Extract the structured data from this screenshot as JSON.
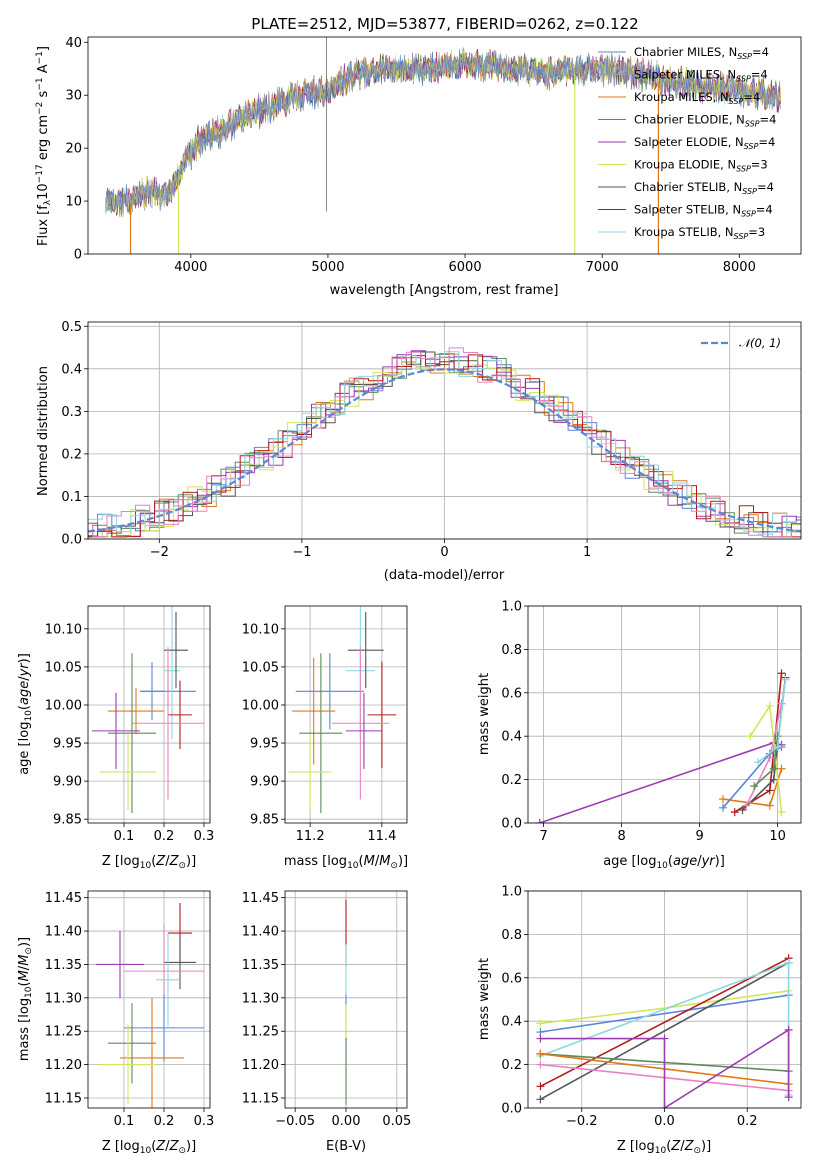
{
  "colors": {
    "chabrier_miles": "#5b86d6",
    "salpeter_miles": "#9aa0a6",
    "kroupa_miles": "#e07a17",
    "chabrier_elodie": "#5f8a5f",
    "salpeter_elodie": "#9b3bb2",
    "kroupa_elodie": "#cfe85a",
    "chabrier_stelib": "#555555",
    "salpeter_stelib": "#b31b1b",
    "kroupa_stelib": "#8ad8e0",
    "pink": "#e882c0",
    "normal_curve": "#5b86d6"
  },
  "chart_data": [
    {
      "id": "spectrum",
      "type": "line",
      "title": "PLATE=2512, MJD=53877, FIBERID=0262, z=0.122",
      "xlabel": "wavelength [Angstrom, rest frame]",
      "ylabel": "Flux [f_λ 10^-17 erg cm^-2 s^-1 A^-1]",
      "xlim": [
        3250,
        8450
      ],
      "ylim": [
        0,
        41
      ],
      "xticks": [
        "4000",
        "5000",
        "6000",
        "7000",
        "8000"
      ],
      "yticks": [
        "0",
        "10",
        "20",
        "30",
        "40"
      ],
      "legend_position": "upper-right",
      "legend": [
        {
          "label": "Chabrier MILES, N",
          "sub": "SSP",
          "rest": "=4",
          "color_key": "chabrier_miles"
        },
        {
          "label": "Salpeter MILES, N",
          "sub": "SSP",
          "rest": "=4",
          "color_key": "salpeter_miles"
        },
        {
          "label": "Kroupa MILES, N",
          "sub": "SSP",
          "rest": "=4",
          "color_key": "kroupa_miles"
        },
        {
          "label": "Chabrier ELODIE, N",
          "sub": "SSP",
          "rest": "=4",
          "color_key": "chabrier_elodie"
        },
        {
          "label": "Salpeter ELODIE, N",
          "sub": "SSP",
          "rest": "=4",
          "color_key": "salpeter_elodie"
        },
        {
          "label": "Kroupa ELODIE, N",
          "sub": "SSP",
          "rest": "=3",
          "color_key": "kroupa_elodie"
        },
        {
          "label": "Chabrier STELIB, N",
          "sub": "SSP",
          "rest": "=4",
          "color_key": "chabrier_stelib"
        },
        {
          "label": "Salpeter STELIB, N",
          "sub": "SSP",
          "rest": "=4",
          "color_key": "salpeter_stelib"
        },
        {
          "label": "Kroupa STELIB, N",
          "sub": "SSP",
          "rest": "=3",
          "color_key": "kroupa_stelib"
        }
      ],
      "continuum": [
        [
          3380,
          10
        ],
        [
          3500,
          9.5
        ],
        [
          3700,
          12
        ],
        [
          3850,
          11
        ],
        [
          3950,
          17
        ],
        [
          4050,
          21
        ],
        [
          4200,
          23
        ],
        [
          4400,
          26
        ],
        [
          4600,
          28
        ],
        [
          4800,
          30
        ],
        [
          5000,
          31
        ],
        [
          5200,
          34
        ],
        [
          5400,
          35
        ],
        [
          5700,
          35
        ],
        [
          6000,
          36
        ],
        [
          6300,
          35
        ],
        [
          6600,
          34
        ],
        [
          6900,
          35
        ],
        [
          7200,
          34.5
        ],
        [
          7500,
          32.5
        ],
        [
          7800,
          31.5
        ],
        [
          8100,
          30.5
        ],
        [
          8300,
          30
        ]
      ],
      "drops": [
        {
          "x": 3560,
          "from": 9,
          "color_key": "kroupa_miles"
        },
        {
          "x": 3910,
          "from": 13,
          "color_key": "kroupa_elodie"
        },
        {
          "x": 6800,
          "from": 34,
          "color_key": "kroupa_elodie"
        },
        {
          "x": 7410,
          "from": 32,
          "color_key": "kroupa_miles"
        }
      ],
      "spikes": [
        {
          "x": 4990,
          "from": 8,
          "to": 41
        }
      ]
    },
    {
      "id": "residuals",
      "type": "histogram",
      "xlabel": "(data-model)/error",
      "ylabel": "Normed distribution",
      "xlim": [
        -2.5,
        2.5
      ],
      "ylim": [
        0,
        0.51
      ],
      "xticks": [
        -2,
        -1,
        0,
        1,
        2
      ],
      "xtick_labels": [
        "−2",
        "−1",
        "0",
        "1",
        "2"
      ],
      "yticks": [
        0.0,
        0.1,
        0.2,
        0.3,
        0.4,
        0.5
      ],
      "ytick_labels": [
        "0.0",
        "0.1",
        "0.2",
        "0.3",
        "0.4",
        "0.5"
      ],
      "legend": [
        {
          "label": "𝒩(0, 1)",
          "color_key": "normal_curve"
        }
      ],
      "bin_width": 0.1
    },
    {
      "id": "age_vs_Z",
      "type": "scatter",
      "xlabel": "Z [log10(Z/Z⊙)]",
      "ylabel": "age  [log10(age/yr)]",
      "xlim": [
        0.01,
        0.315
      ],
      "ylim": [
        9.845,
        10.13
      ],
      "xticks": [
        0.1,
        0.2,
        0.3
      ],
      "xtick_labels": [
        "0.1",
        "0.2",
        "0.3"
      ],
      "yticks": [
        9.85,
        9.9,
        9.95,
        10.0,
        10.05,
        10.1
      ],
      "ytick_labels": [
        "9.85",
        "9.90",
        "9.95",
        "10.00",
        "10.05",
        "10.10"
      ],
      "points": [
        {
          "x": 0.17,
          "xerr": 0.03,
          "y": 10.018,
          "yerr": 0.038,
          "color_key": "chabrier_miles"
        },
        {
          "x": 0.21,
          "xerr": 0.07,
          "y": 10.018,
          "yerr": 0.018,
          "color_key": "chabrier_miles"
        },
        {
          "x": 0.22,
          "xerr": 0.02,
          "y": 10.045,
          "yerr": 0.09,
          "color_key": "kroupa_stelib"
        },
        {
          "x": 0.23,
          "xerr": 0.03,
          "y": 10.072,
          "yerr": 0.05,
          "color_key": "chabrier_stelib"
        },
        {
          "x": 0.24,
          "xerr": 0.03,
          "y": 9.987,
          "yerr": 0.045,
          "color_key": "salpeter_stelib"
        },
        {
          "x": 0.13,
          "xerr": 0.07,
          "y": 9.992,
          "yerr": 0.03,
          "color_key": "kroupa_miles"
        },
        {
          "x": 0.21,
          "xerr": 0.09,
          "y": 9.976,
          "yerr": 0.1,
          "color_key": "pink"
        },
        {
          "x": 0.08,
          "xerr": 0.06,
          "y": 9.966,
          "yerr": 0.05,
          "color_key": "salpeter_elodie"
        },
        {
          "x": 0.12,
          "xerr": 0.06,
          "y": 9.963,
          "yerr": 0.105,
          "color_key": "chabrier_elodie"
        },
        {
          "x": 0.11,
          "xerr": 0.07,
          "y": 9.912,
          "yerr": 0.05,
          "color_key": "kroupa_elodie"
        }
      ]
    },
    {
      "id": "age_vs_mass",
      "type": "scatter",
      "xlabel": "mass [log10(M/M⊙)]",
      "ylabel": "",
      "xlim": [
        11.13,
        11.47
      ],
      "ylim": [
        9.845,
        10.13
      ],
      "xticks": [
        11.2,
        11.4
      ],
      "xtick_labels": [
        "11.2",
        "11.4"
      ],
      "yticks": [
        9.85,
        9.9,
        9.95,
        10.0,
        10.05,
        10.1
      ],
      "ytick_labels": [
        "9.85",
        "9.90",
        "9.95",
        "10.00",
        "10.05",
        "10.10"
      ],
      "points": [
        {
          "x": 11.255,
          "xerr": 0.095,
          "y": 10.018,
          "yerr": 0.05,
          "color_key": "chabrier_miles"
        },
        {
          "x": 11.34,
          "xerr": 0.04,
          "y": 10.045,
          "yerr": 0.09,
          "color_key": "kroupa_stelib"
        },
        {
          "x": 11.355,
          "xerr": 0.05,
          "y": 10.072,
          "yerr": 0.05,
          "color_key": "chabrier_stelib"
        },
        {
          "x": 11.4,
          "xerr": 0.04,
          "y": 9.987,
          "yerr": 0.07,
          "color_key": "salpeter_stelib"
        },
        {
          "x": 11.21,
          "xerr": 0.06,
          "y": 9.992,
          "yerr": 0.07,
          "color_key": "kroupa_miles"
        },
        {
          "x": 11.34,
          "xerr": 0.08,
          "y": 9.976,
          "yerr": 0.1,
          "color_key": "pink"
        },
        {
          "x": 11.35,
          "xerr": 0.05,
          "y": 9.966,
          "yerr": 0.05,
          "color_key": "salpeter_elodie"
        },
        {
          "x": 11.23,
          "xerr": 0.06,
          "y": 9.963,
          "yerr": 0.105,
          "color_key": "chabrier_elodie"
        },
        {
          "x": 11.2,
          "xerr": 0.06,
          "y": 9.912,
          "yerr": 0.05,
          "color_key": "kroupa_elodie"
        }
      ]
    },
    {
      "id": "weight_vs_age",
      "type": "line",
      "xlabel": "age  [log10(age/yr)]",
      "ylabel": "mass weight",
      "xlim": [
        6.8,
        10.3
      ],
      "ylim": [
        0,
        1.0
      ],
      "xticks": [
        7,
        8,
        9,
        10
      ],
      "xtick_labels": [
        "7",
        "8",
        "9",
        "10"
      ],
      "yticks": [
        0,
        0.2,
        0.4,
        0.6,
        0.8,
        1.0
      ],
      "ytick_labels": [
        "0.0",
        "0.2",
        "0.4",
        "0.6",
        "0.8",
        "1.0"
      ],
      "series": [
        {
          "color_key": "salpeter_elodie",
          "x": [
            6.95,
            9.95,
            10.05
          ],
          "y": [
            0.0,
            0.37,
            0.36
          ]
        },
        {
          "color_key": "salpeter_stelib",
          "x": [
            9.45,
            9.9,
            10.05
          ],
          "y": [
            0.05,
            0.15,
            0.69
          ]
        },
        {
          "color_key": "chabrier_stelib",
          "x": [
            9.55,
            9.95,
            10.1
          ],
          "y": [
            0.06,
            0.2,
            0.67
          ]
        },
        {
          "color_key": "kroupa_miles",
          "x": [
            9.3,
            9.9,
            10.05
          ],
          "y": [
            0.11,
            0.08,
            0.25
          ]
        },
        {
          "color_key": "pink",
          "x": [
            9.6,
            9.9,
            10.05
          ],
          "y": [
            0.08,
            0.3,
            0.55
          ]
        },
        {
          "color_key": "kroupa_elodie",
          "x": [
            9.65,
            9.9,
            10.05
          ],
          "y": [
            0.4,
            0.54,
            0.05
          ]
        },
        {
          "color_key": "chabrier_miles",
          "x": [
            9.3,
            9.9,
            10.05
          ],
          "y": [
            0.07,
            0.32,
            0.35
          ]
        },
        {
          "color_key": "chabrier_elodie",
          "x": [
            9.7,
            9.95,
            10.0
          ],
          "y": [
            0.17,
            0.25,
            0.4
          ]
        },
        {
          "color_key": "kroupa_stelib",
          "x": [
            9.75,
            10.0,
            10.1
          ],
          "y": [
            0.28,
            0.35,
            0.66
          ]
        }
      ]
    },
    {
      "id": "mass_vs_Z",
      "type": "scatter",
      "xlabel": "Z [log10(Z/Z⊙)]",
      "ylabel": "mass [log10(M/M⊙)]",
      "xlim": [
        0.01,
        0.315
      ],
      "ylim": [
        11.135,
        11.46
      ],
      "xticks": [
        0.1,
        0.2,
        0.3
      ],
      "xtick_labels": [
        "0.1",
        "0.2",
        "0.3"
      ],
      "yticks": [
        11.15,
        11.2,
        11.25,
        11.3,
        11.35,
        11.4,
        11.45
      ],
      "ytick_labels": [
        "11.15",
        "11.20",
        "11.25",
        "11.30",
        "11.35",
        "11.40",
        "11.45"
      ],
      "points": [
        {
          "x": 0.09,
          "xerr": 0.06,
          "y": 11.35,
          "yerr": 0.05,
          "color_key": "salpeter_elodie"
        },
        {
          "x": 0.24,
          "xerr": 0.03,
          "y": 11.397,
          "yerr": 0.045,
          "color_key": "salpeter_stelib"
        },
        {
          "x": 0.24,
          "xerr": 0.04,
          "y": 11.353,
          "yerr": 0.04,
          "color_key": "chabrier_stelib"
        },
        {
          "x": 0.2,
          "xerr": 0.1,
          "y": 11.34,
          "yerr": 0.07,
          "color_key": "pink"
        },
        {
          "x": 0.21,
          "xerr": 0.03,
          "y": 11.327,
          "yerr": 0.07,
          "color_key": "kroupa_stelib"
        },
        {
          "x": 0.2,
          "xerr": 0.1,
          "y": 11.255,
          "yerr": 0.05,
          "color_key": "chabrier_miles"
        },
        {
          "x": 0.12,
          "xerr": 0.06,
          "y": 11.232,
          "yerr": 0.06,
          "color_key": "chabrier_elodie"
        },
        {
          "x": 0.17,
          "xerr": 0.08,
          "y": 11.21,
          "yerr": 0.09,
          "color_key": "kroupa_miles"
        },
        {
          "x": 0.11,
          "xerr": 0.07,
          "y": 11.2,
          "yerr": 0.06,
          "color_key": "kroupa_elodie"
        }
      ]
    },
    {
      "id": "mass_vs_ebv",
      "type": "scatter",
      "xlabel": "E(B-V)",
      "ylabel": "",
      "xlim": [
        -0.06,
        0.06
      ],
      "ylim": [
        11.135,
        11.46
      ],
      "xticks": [
        -0.05,
        0.0,
        0.05
      ],
      "xtick_labels": [
        "−0.05",
        "0.00",
        "0.05"
      ],
      "yticks": [
        11.15,
        11.2,
        11.25,
        11.3,
        11.35,
        11.4,
        11.45
      ],
      "ytick_labels": [
        "11.15",
        "11.20",
        "11.25",
        "11.30",
        "11.35",
        "11.40",
        "11.45"
      ],
      "points": [
        {
          "x": 0.0,
          "xerr": 0,
          "y": 11.397,
          "yerr": 0.05,
          "color_key": "salpeter_stelib"
        },
        {
          "x": 0.0,
          "xerr": 0,
          "y": 11.34,
          "yerr": 0.04,
          "color_key": "kroupa_stelib"
        },
        {
          "x": 0.0,
          "xerr": 0,
          "y": 11.255,
          "yerr": 0.05,
          "color_key": "chabrier_miles"
        },
        {
          "x": 0.0,
          "xerr": 0,
          "y": 11.22,
          "yerr": 0.07,
          "color_key": "kroupa_elodie"
        },
        {
          "x": 0.0,
          "xerr": 0,
          "y": 11.19,
          "yerr": 0.05,
          "color_key": "chabrier_elodie"
        }
      ]
    },
    {
      "id": "weight_vs_Z",
      "type": "line",
      "xlabel": "Z [log10(Z/Z⊙)]",
      "ylabel": "mass weight",
      "xlim": [
        -0.33,
        0.33
      ],
      "ylim": [
        0,
        1.0
      ],
      "xticks": [
        -0.2,
        0.0,
        0.2
      ],
      "xtick_labels": [
        "−0.2",
        "0.0",
        "0.2"
      ],
      "yticks": [
        0,
        0.2,
        0.4,
        0.6,
        0.8,
        1.0
      ],
      "ytick_labels": [
        "0.0",
        "0.2",
        "0.4",
        "0.6",
        "0.8",
        "1.0"
      ],
      "series": [
        {
          "color_key": "kroupa_elodie",
          "x": [
            -0.3,
            0.0,
            0.3
          ],
          "y": [
            0.39,
            0.46,
            0.54
          ]
        },
        {
          "color_key": "chabrier_miles",
          "x": [
            -0.3,
            0.3
          ],
          "y": [
            0.35,
            0.52
          ]
        },
        {
          "color_key": "salpeter_stelib",
          "x": [
            -0.3,
            0.3
          ],
          "y": [
            0.1,
            0.69
          ]
        },
        {
          "color_key": "chabrier_stelib",
          "x": [
            -0.3,
            0.3
          ],
          "y": [
            0.04,
            0.67
          ]
        },
        {
          "color_key": "kroupa_stelib",
          "x": [
            -0.3,
            0.3,
            0.3
          ],
          "y": [
            0.24,
            0.67,
            0.06
          ]
        },
        {
          "color_key": "chabrier_elodie",
          "x": [
            -0.3,
            0.3
          ],
          "y": [
            0.25,
            0.17
          ]
        },
        {
          "color_key": "kroupa_miles",
          "x": [
            -0.3,
            0.3
          ],
          "y": [
            0.25,
            0.11
          ]
        },
        {
          "color_key": "pink",
          "x": [
            -0.3,
            0.3
          ],
          "y": [
            0.2,
            0.08
          ]
        },
        {
          "color_key": "salpeter_elodie",
          "x": [
            -0.3,
            0.0,
            0.0,
            0.3,
            0.3
          ],
          "y": [
            0.32,
            0.32,
            0.0,
            0.36,
            0.05
          ]
        }
      ]
    }
  ]
}
